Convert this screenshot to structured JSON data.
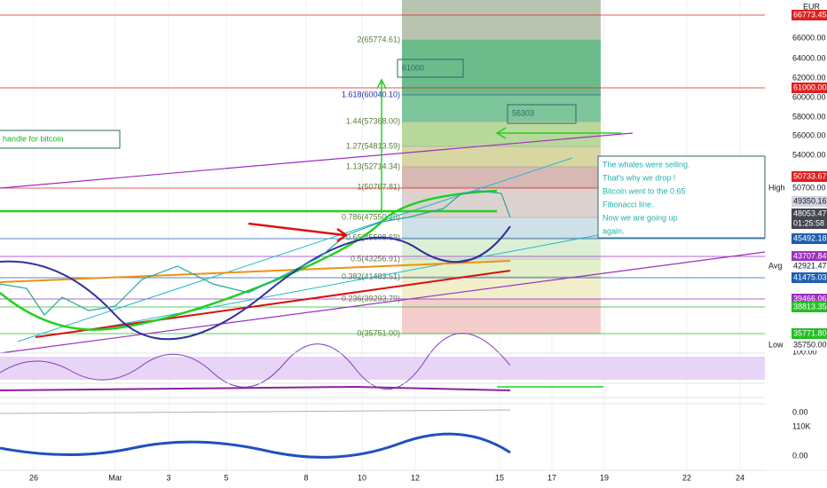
{
  "currency": "EUR",
  "price_axis": [
    "66000.00",
    "64000.00",
    "62000.00",
    "60000.00",
    "58000.00",
    "56000.00",
    "54000.00",
    "50700.00",
    "100.00",
    "0.00",
    "110K",
    "0.00"
  ],
  "price_tags": [
    "66773.45",
    "61000.00",
    "50733.67",
    "49350.16",
    "48053.47",
    "01:25:58",
    "45492.18",
    "43707.84",
    "42921.47",
    "41475.03",
    "39466.06",
    "38813.35",
    "35771.80",
    "35750.00"
  ],
  "tag_labels": [
    "High",
    "Avg",
    "Low"
  ],
  "fib_levels": [
    "2(65774.61)",
    "1.618(60040.10)",
    "1.44(57368.00)",
    "1.27(54813.59)",
    "1.13(52714.34)",
    "1(50767.81)",
    "0.786(47550.28)",
    "0.65(45508.69)",
    "0.5(43256.91)",
    "0.382(41483.51)",
    "0.236(39293.79)",
    "0(35751.00)"
  ],
  "annotations": {
    "target_high": "61000",
    "target_mid": "56303",
    "handle": "handle for bitcoin",
    "note": [
      "The whales were selling.",
      "That's why we drop !",
      "Bitcoin went to the 0.65",
      "Fibonacci line.",
      "Now we are going up",
      "again."
    ]
  },
  "dates": [
    "26",
    "Mar",
    "3",
    "5",
    "8",
    "10",
    "12",
    "15",
    "17",
    "19",
    "22",
    "24"
  ]
}
